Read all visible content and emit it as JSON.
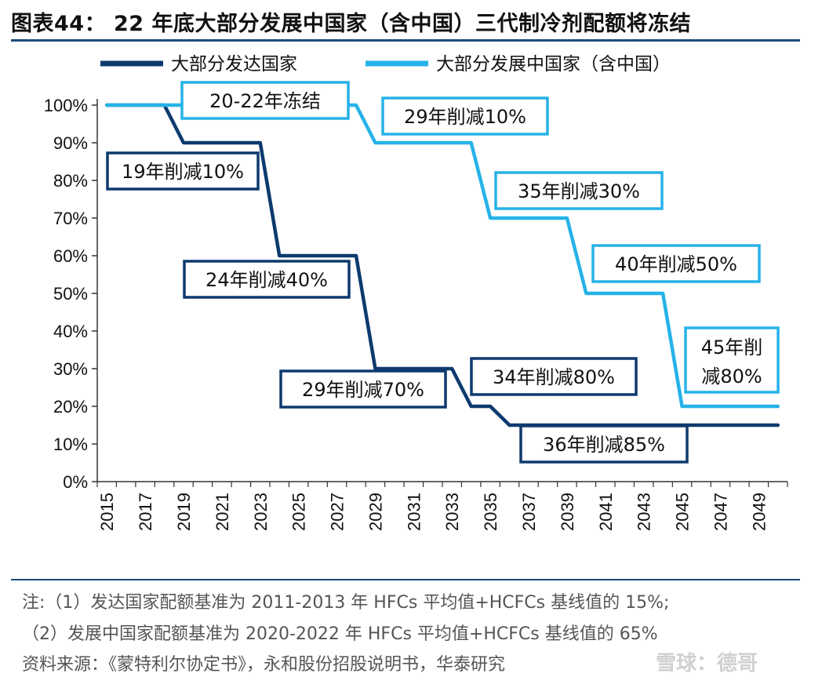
{
  "title": "图表44： 22 年底大部分发展中国家（含中国）三代制冷剂配额将冻结",
  "notes": [
    "注:（1）发达国家配额基准为 2011-2013 年 HFCs 平均值+HCFCs 基线值的 15%;",
    "（2）发展中国家配额基准为 2020-2022 年 HFCs 平均值+HCFCs 基线值的 65%"
  ],
  "source": "资料来源：《蒙特利尔协定书》，永和股份招股说明书，华泰研究",
  "watermark": "雪球：德哥",
  "colors": {
    "developed": "#0d3a6e",
    "developing": "#26b2e8",
    "rule": "#1a4b7c"
  },
  "chart_data": {
    "type": "line",
    "legend_position": "top",
    "ylim": [
      0,
      100
    ],
    "y_ticks": [
      "0%",
      "10%",
      "20%",
      "30%",
      "40%",
      "50%",
      "60%",
      "70%",
      "80%",
      "90%",
      "100%"
    ],
    "x_ticks": [
      "2015",
      "2017",
      "2019",
      "2021",
      "2023",
      "2025",
      "2027",
      "2029",
      "2031",
      "2033",
      "2035",
      "2037",
      "2039",
      "2041",
      "2043",
      "2045",
      "2047",
      "2049"
    ],
    "x": [
      2015,
      2016,
      2017,
      2018,
      2019,
      2020,
      2021,
      2022,
      2023,
      2024,
      2025,
      2026,
      2027,
      2028,
      2029,
      2030,
      2031,
      2032,
      2033,
      2034,
      2035,
      2036,
      2037,
      2038,
      2039,
      2040,
      2041,
      2042,
      2043,
      2044,
      2045,
      2046,
      2047,
      2048,
      2049,
      2050
    ],
    "series": [
      {
        "name": "大部分发达国家",
        "values": [
          100,
          100,
          100,
          100,
          90,
          90,
          90,
          90,
          90,
          60,
          60,
          60,
          60,
          60,
          30,
          30,
          30,
          30,
          30,
          20,
          20,
          15,
          15,
          15,
          15,
          15,
          15,
          15,
          15,
          15,
          15,
          15,
          15,
          15,
          15,
          15
        ]
      },
      {
        "name": "大部分发展中国家（含中国）",
        "values": [
          100,
          100,
          100,
          100,
          100,
          100,
          100,
          100,
          100,
          100,
          100,
          100,
          100,
          100,
          90,
          90,
          90,
          90,
          90,
          90,
          70,
          70,
          70,
          70,
          70,
          50,
          50,
          50,
          50,
          50,
          20,
          20,
          20,
          20,
          20,
          20
        ]
      }
    ],
    "annotations": [
      {
        "text": "20-22年冻结",
        "series": 1
      },
      {
        "text": "29年削减10%",
        "series": 1
      },
      {
        "text": "35年削减30%",
        "series": 1
      },
      {
        "text": "40年削减50%",
        "series": 1
      },
      {
        "text": "45年削",
        "text2": "减80%",
        "series": 1
      },
      {
        "text": "19年削减10%",
        "series": 0
      },
      {
        "text": "24年削减40%",
        "series": 0
      },
      {
        "text": "29年削减70%",
        "series": 0
      },
      {
        "text": "34年削减80%",
        "series": 0
      },
      {
        "text": "36年削减85%",
        "series": 0
      }
    ]
  }
}
